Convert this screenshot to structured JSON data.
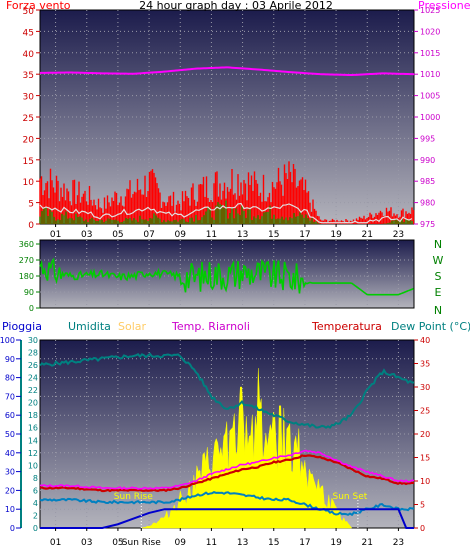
{
  "chart_data": [
    {
      "type": "line",
      "title": "24 hour graph day : 03 Aprile 2012",
      "left_axis_label": "Forza vento",
      "right_axis_label": "Pressione",
      "x_ticks": [
        "01",
        "03",
        "05",
        "07",
        "09",
        "11",
        "13",
        "15",
        "17",
        "19",
        "21",
        "23"
      ],
      "ylim_left": [
        0,
        50
      ],
      "yticks_left": [
        0,
        5,
        10,
        15,
        20,
        25,
        30,
        35,
        40,
        45,
        50
      ],
      "ylim_right": [
        975,
        1025
      ],
      "yticks_right": [
        975,
        980,
        985,
        990,
        995,
        1000,
        1005,
        1010,
        1015,
        1020,
        1025
      ],
      "grid": true,
      "series": [
        {
          "axis": "right",
          "color": "#ff00ff",
          "x": [
            0,
            2,
            4,
            6,
            8,
            10,
            12,
            14,
            16,
            18,
            20,
            22,
            24
          ],
          "values": [
            1010.3,
            1010.4,
            1010.2,
            1010.1,
            1010.6,
            1011.3,
            1011.6,
            1011.1,
            1010.5,
            1010,
            1009.8,
            1010.2,
            1010
          ]
        },
        {
          "axis": "left",
          "color": "#ff0000",
          "style": "gusts",
          "x": [
            0,
            1,
            2,
            3,
            4,
            5,
            6,
            7,
            8,
            9,
            10,
            11,
            12,
            13,
            14,
            15,
            16,
            17,
            18,
            19,
            20,
            21,
            22,
            23,
            24
          ],
          "values": [
            13,
            11,
            9,
            8,
            5,
            8,
            9,
            12,
            7,
            6,
            9,
            11,
            12,
            13,
            10,
            11,
            13,
            9,
            1,
            1,
            1,
            2,
            4,
            3,
            4
          ]
        },
        {
          "axis": "left",
          "color": "#00a000",
          "style": "average",
          "x": [
            0,
            1,
            2,
            3,
            4,
            5,
            6,
            7,
            8,
            9,
            10,
            11,
            12,
            13,
            14,
            15,
            16,
            17,
            18,
            19,
            20,
            21,
            22,
            23,
            24
          ],
          "values": [
            3,
            2,
            2,
            1,
            1,
            1,
            1,
            2,
            1,
            1,
            2,
            3,
            4,
            3,
            3,
            3,
            2,
            2,
            0,
            0,
            0,
            0,
            0,
            1,
            1
          ]
        }
      ]
    },
    {
      "type": "line",
      "title": "",
      "ylim_left": [
        0,
        360
      ],
      "yticks_left": [
        0,
        90,
        180,
        270,
        360
      ],
      "right_labels": [
        "N",
        "W",
        "S",
        "E",
        "N"
      ],
      "x_ticks": [
        "01",
        "03",
        "05",
        "07",
        "09",
        "11",
        "13",
        "15",
        "17",
        "19",
        "21",
        "23"
      ],
      "series": [
        {
          "color": "#00cc00",
          "name": "",
          "x": [
            0,
            1,
            2,
            3,
            4,
            5,
            6,
            7,
            8,
            9,
            10,
            11,
            12,
            13,
            14,
            15,
            16,
            17,
            17.5,
            18,
            19,
            20,
            21,
            22,
            23,
            24
          ],
          "values": [
            240,
            200,
            180,
            185,
            190,
            175,
            180,
            200,
            190,
            180,
            170,
            190,
            185,
            200,
            195,
            180,
            175,
            150,
            140,
            140,
            140,
            140,
            75,
            75,
            75,
            110
          ]
        }
      ]
    },
    {
      "type": "area",
      "title": "",
      "labels_top": [
        "Pioggia",
        "Umidita",
        "Solar",
        "Temp. Riarnoli",
        "Temperatura",
        "Dew Point (°C)"
      ],
      "x_ticks": [
        "01",
        "03",
        "05",
        "Sun Rise",
        "09",
        "11",
        "13",
        "15",
        "17",
        "19",
        "21",
        "23"
      ],
      "axes": {
        "rain": {
          "ticks": [
            0,
            10,
            20,
            30,
            40,
            50,
            60,
            70,
            80,
            90,
            100
          ]
        },
        "humidity": {
          "ticks": [
            0,
            2,
            4,
            6,
            8,
            10,
            12,
            14,
            16,
            18,
            20,
            22,
            24,
            26,
            28,
            30
          ]
        },
        "temperature": {
          "ticks": [
            0,
            5,
            10,
            15,
            20,
            25,
            30,
            35,
            40
          ]
        }
      },
      "annotations": [
        {
          "text": "Sun Rise",
          "x": 6.5
        },
        {
          "text": "Sun Set",
          "x": 20.4
        }
      ],
      "series": [
        {
          "name": "Umidita",
          "color": "#008080",
          "x": [
            0,
            2,
            4,
            6,
            8,
            9,
            10,
            11,
            12,
            13,
            14,
            15,
            16,
            17,
            18,
            19,
            20,
            21,
            22,
            23,
            24
          ],
          "values": [
            26,
            26.5,
            27,
            27.5,
            27.5,
            27.5,
            25,
            21,
            19,
            20,
            19,
            18,
            17,
            16.5,
            16,
            16.5,
            18,
            22,
            25,
            24,
            23
          ]
        },
        {
          "name": "Temp. Riarnoli",
          "color": "#ff00ff",
          "x": [
            0,
            2,
            4,
            6,
            8,
            9,
            10,
            11,
            12,
            13,
            14,
            15,
            16,
            17,
            18,
            19,
            20,
            21,
            22,
            23,
            24
          ],
          "values": [
            9,
            9,
            8.5,
            8.5,
            8.5,
            9,
            10,
            11.5,
            12.5,
            13.5,
            14,
            15,
            15.5,
            16.5,
            16,
            14.5,
            13,
            12,
            11,
            10,
            10
          ]
        },
        {
          "name": "Temperatura",
          "color": "#cc0000",
          "x": [
            0,
            2,
            4,
            6,
            8,
            9,
            10,
            11,
            12,
            13,
            14,
            15,
            16,
            17,
            18,
            19,
            20,
            21,
            22,
            23,
            24
          ],
          "values": [
            8.5,
            8.5,
            8,
            8,
            8,
            8.5,
            9.5,
            10.5,
            11.5,
            12.5,
            13,
            14,
            14.5,
            15.5,
            15,
            14,
            12.5,
            11,
            10.5,
            9.5,
            9.5
          ]
        },
        {
          "name": "Dew Point (°C)",
          "color": "#0080c0",
          "x": [
            0,
            2,
            4,
            6,
            8,
            9,
            10,
            11,
            12,
            13,
            14,
            15,
            16,
            17,
            18,
            19,
            20,
            21,
            22,
            23,
            24
          ],
          "values": [
            6,
            6,
            5.5,
            5.5,
            5.5,
            6,
            7,
            7.5,
            7.5,
            7,
            6.5,
            6,
            6,
            5,
            4,
            3,
            3,
            4,
            5,
            4,
            4
          ]
        },
        {
          "name": "Solar",
          "color": "#ffff00",
          "x": [
            6.5,
            7,
            8,
            9,
            10,
            11,
            12,
            13,
            14,
            15,
            16,
            17,
            18,
            19,
            20
          ],
          "values": [
            0,
            0.5,
            2.5,
            7,
            11,
            16,
            20,
            22,
            26,
            21,
            22,
            16,
            9,
            4,
            0
          ]
        },
        {
          "name": "Pioggia",
          "color": "#0000cc",
          "x": [
            0,
            2,
            4,
            5,
            6,
            7,
            8,
            23,
            23.5,
            24
          ],
          "values": [
            0,
            0,
            0,
            2,
            5,
            8,
            10,
            10,
            0,
            0
          ]
        }
      ]
    }
  ]
}
